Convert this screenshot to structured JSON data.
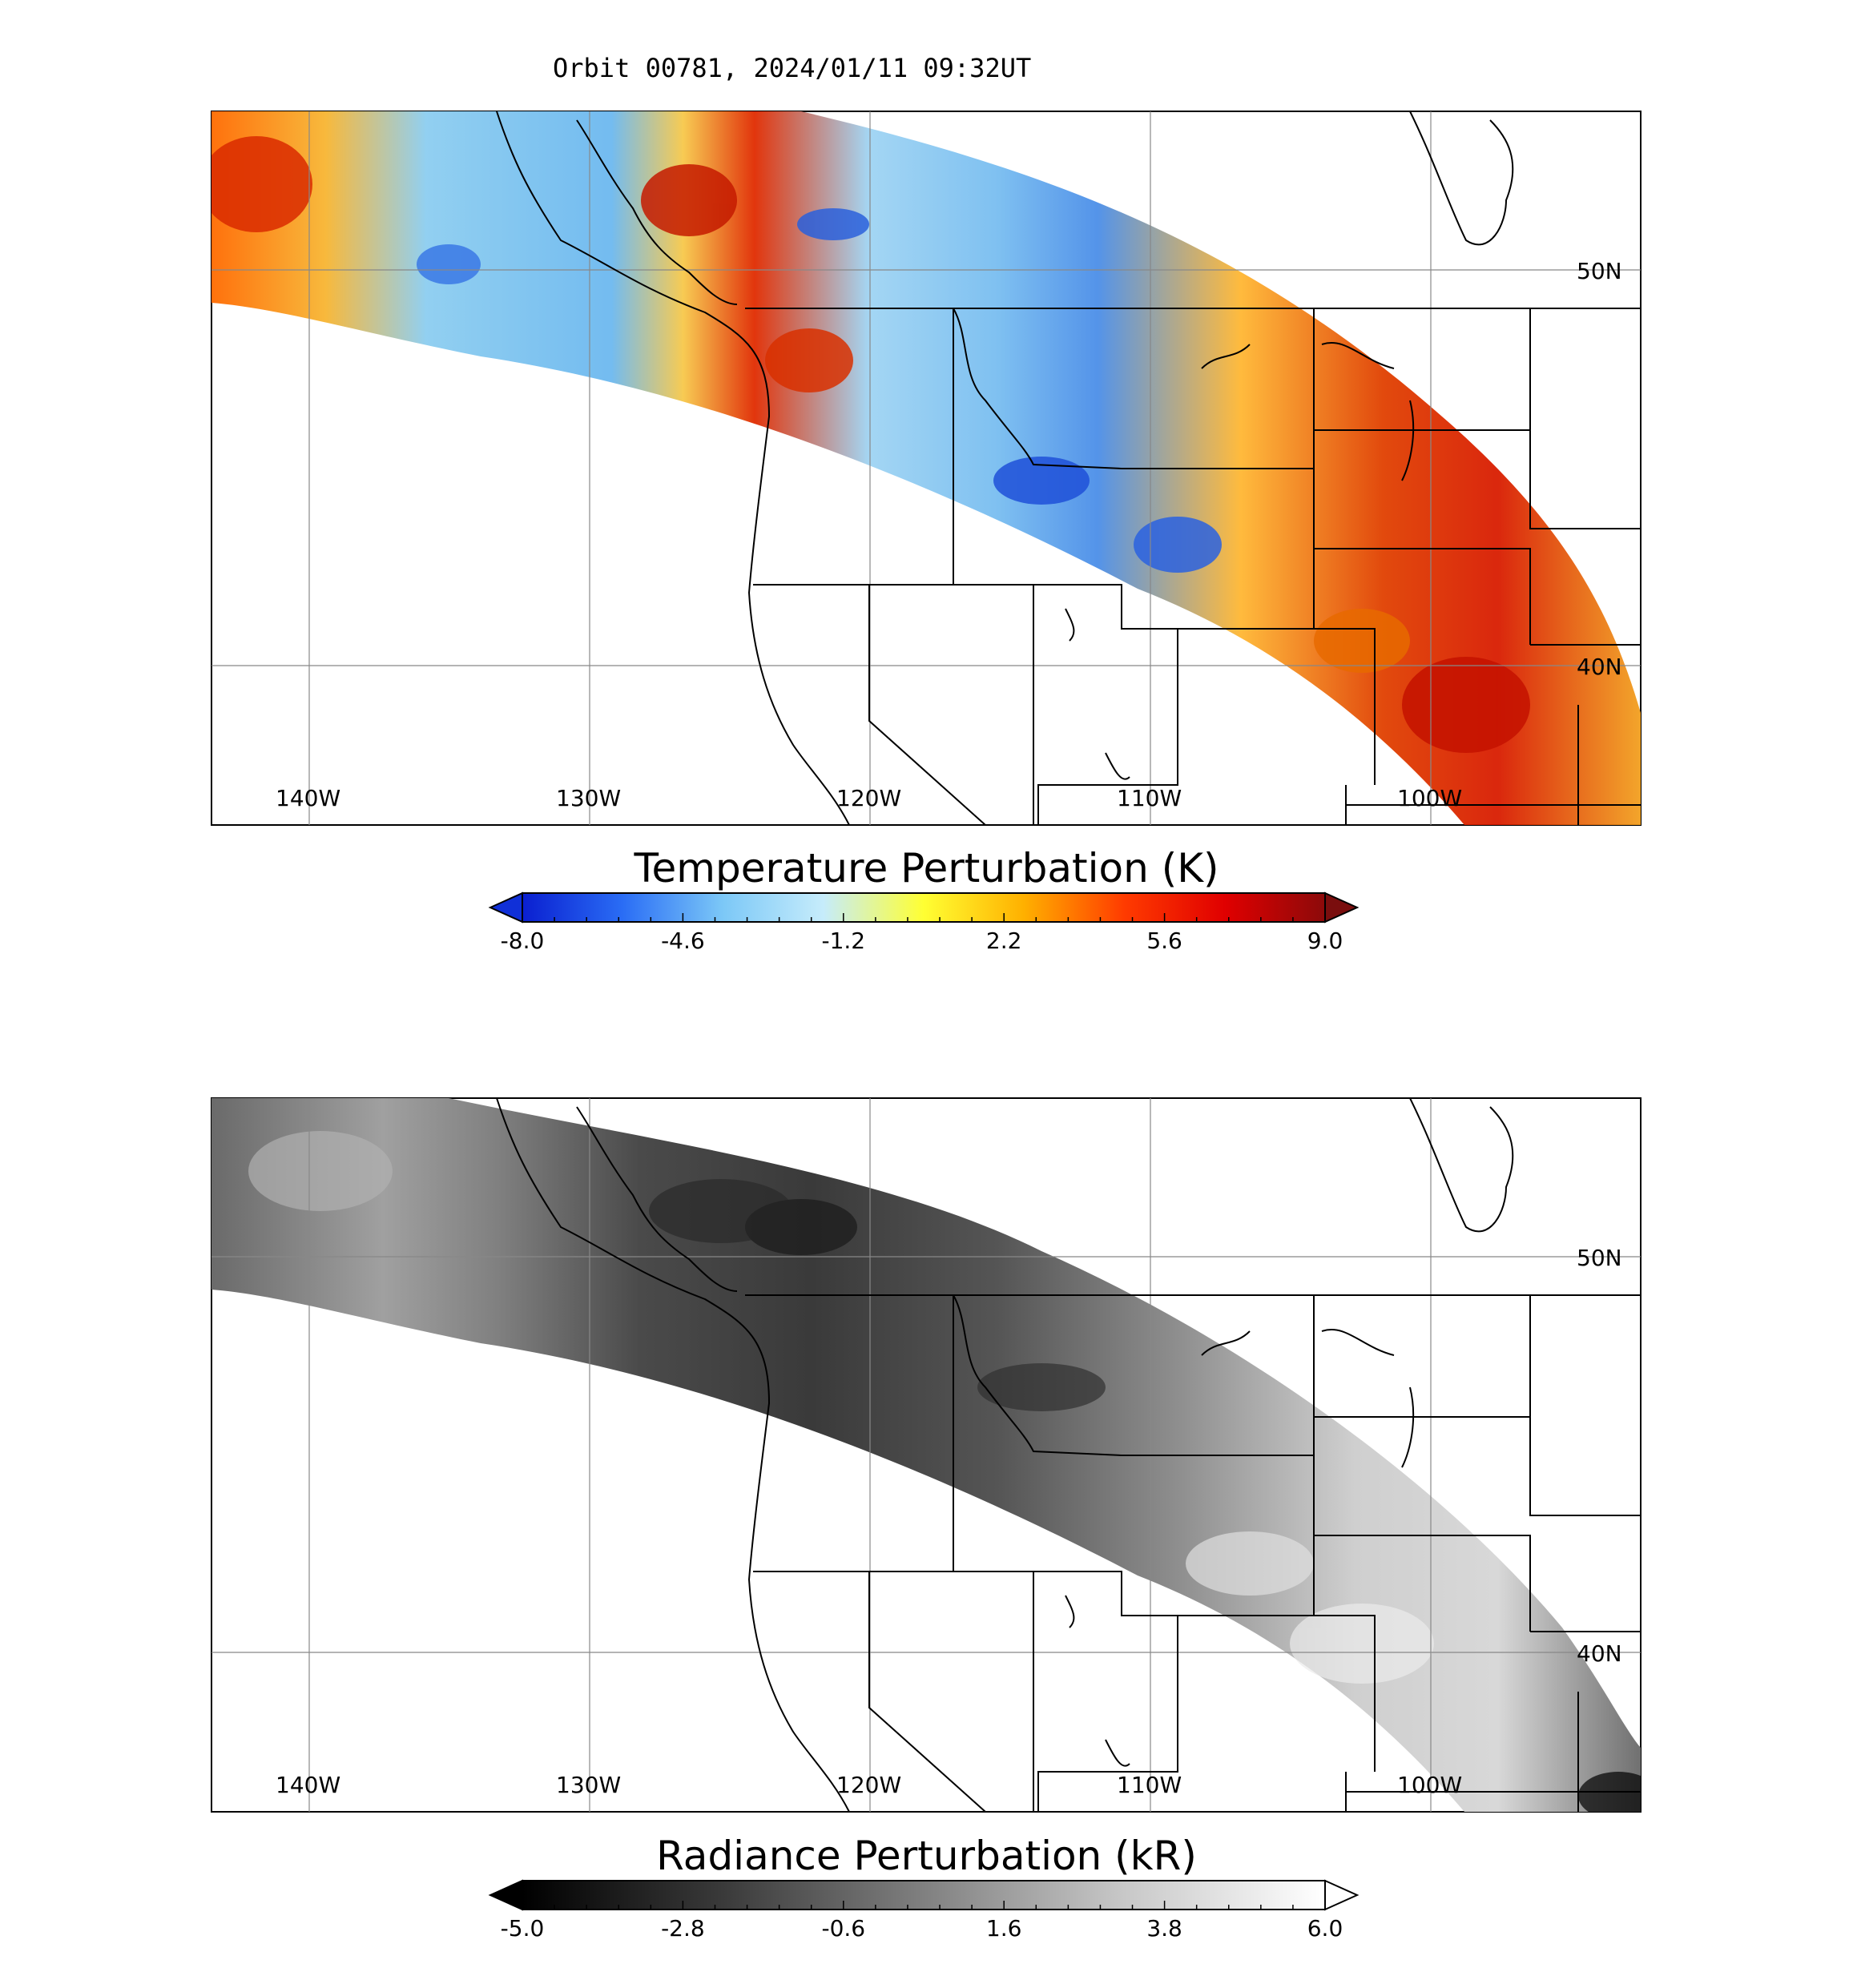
{
  "title": "Orbit 00781, 2024/01/11 09:32UT",
  "maps": [
    {
      "id": "temperature",
      "colorbar": {
        "title": "Temperature Perturbation (K)",
        "ticks": [
          "-8.0",
          "-4.6",
          "-1.2",
          "2.2",
          "5.6",
          "9.0"
        ],
        "colors": [
          "#0a1fd0",
          "#2a6df5",
          "#7cc8f7",
          "#c6ecfb",
          "#ffff33",
          "#ffb000",
          "#ff3b00",
          "#e00000",
          "#8c0a0a"
        ],
        "under_color": "#1030d8",
        "over_color": "#7a0e0e"
      }
    },
    {
      "id": "radiance",
      "colorbar": {
        "title": "Radiance Perturbation (kR)",
        "ticks": [
          "-5.0",
          "-2.8",
          "-0.6",
          "1.6",
          "3.8",
          "6.0"
        ],
        "colors": [
          "#000000",
          "#3a3a3a",
          "#808080",
          "#c8c8c8",
          "#ffffff"
        ],
        "under_color": "#000000",
        "over_color": "#ffffff"
      }
    }
  ],
  "lon_labels": [
    "140W",
    "130W",
    "120W",
    "110W",
    "100W"
  ],
  "lat_labels": [
    "50N",
    "40N"
  ]
}
